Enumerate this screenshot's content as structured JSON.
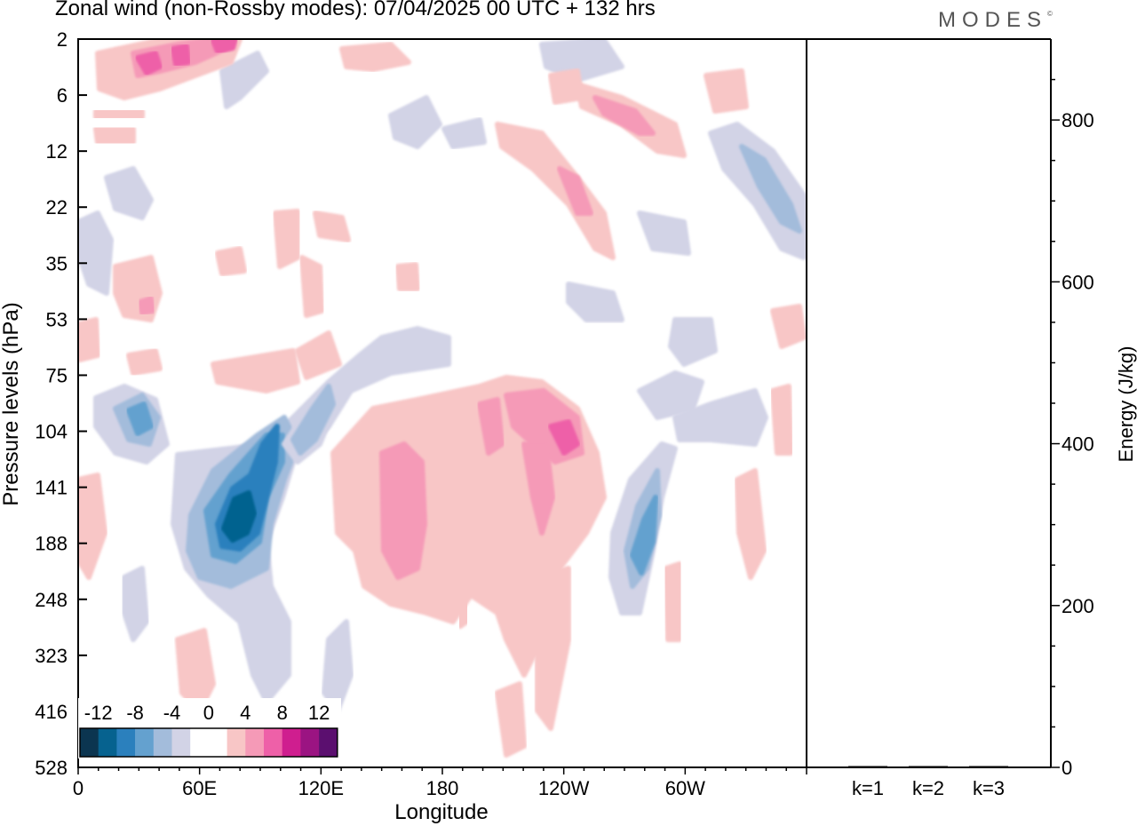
{
  "header": {
    "title": "Zonal wind (non-Rossby modes):  07/04/2025  00 UTC  + 132 hrs",
    "logo_text": "MODES",
    "logo_mark": "©"
  },
  "colors": {
    "scale": [
      "#0b3550",
      "#06628f",
      "#2b80bd",
      "#64a1cf",
      "#a3bcdb",
      "#d2d3e6",
      "#ffffff",
      "#ffffff",
      "#f8c6c6",
      "#f59ab7",
      "#ee60a8",
      "#cf1e8f",
      "#9b1482",
      "#5b0f6f"
    ],
    "neg_light": "#d2d3e6",
    "neg_mid": "#a3bcdb",
    "neg_strong": "#64a1cf",
    "neg_deep": "#2b80bd",
    "neg_core": "#06628f",
    "pos_light": "#f8c6c6",
    "pos_mid": "#f59ab7",
    "pos_strong": "#ee60a8",
    "pos_core": "#cf1e8f"
  },
  "chart_data": [
    {
      "type": "heatmap",
      "title": "Zonal wind (non-Rossby modes):  07/04/2025  00 UTC  + 132 hrs",
      "xlabel": "Longitude",
      "ylabel": "Pressure levels (hPa)",
      "x_ticks": [
        "0",
        "60E",
        "120E",
        "180",
        "120W",
        "60W"
      ],
      "x_tick_degrees": [
        0,
        60,
        120,
        180,
        240,
        300
      ],
      "x_range_degrees": [
        0,
        360
      ],
      "y_ticks": [
        "2",
        "6",
        "12",
        "22",
        "35",
        "53",
        "75",
        "104",
        "141",
        "188",
        "248",
        "323",
        "416",
        "528"
      ],
      "y_scale": "model levels (top 2 hPa, bottom 528 hPa)",
      "colorbar": {
        "labels": [
          "-12",
          "-8",
          "-4",
          "0",
          "4",
          "8",
          "12"
        ],
        "placement": "bottom-left inside plot"
      },
      "features": [
        {
          "kind": "negative",
          "intensity": -12,
          "near_lon": 77,
          "near_level": "141"
        },
        {
          "kind": "negative",
          "intensity": -8,
          "near_lon": 95,
          "near_level": "104"
        },
        {
          "kind": "negative",
          "intensity": -8,
          "near_lon": 30,
          "near_level": "104"
        },
        {
          "kind": "negative",
          "intensity": -6,
          "near_lon": 282,
          "near_level": "188"
        },
        {
          "kind": "positive",
          "intensity": 8,
          "near_lon": 240,
          "near_level": "104"
        },
        {
          "kind": "positive",
          "intensity": 6,
          "near_lon": 155,
          "near_level": "141"
        },
        {
          "kind": "positive",
          "intensity": 6,
          "near_lon": 60,
          "near_level": "2"
        }
      ]
    },
    {
      "type": "bar",
      "ylabel": "Energy (J/kg)",
      "categories": [
        "k=1",
        "k=2",
        "k=3"
      ],
      "values": [
        1,
        1,
        1
      ],
      "ylim": [
        0,
        900
      ],
      "y_ticks": [
        "0",
        "200",
        "400",
        "600",
        "800"
      ]
    }
  ]
}
